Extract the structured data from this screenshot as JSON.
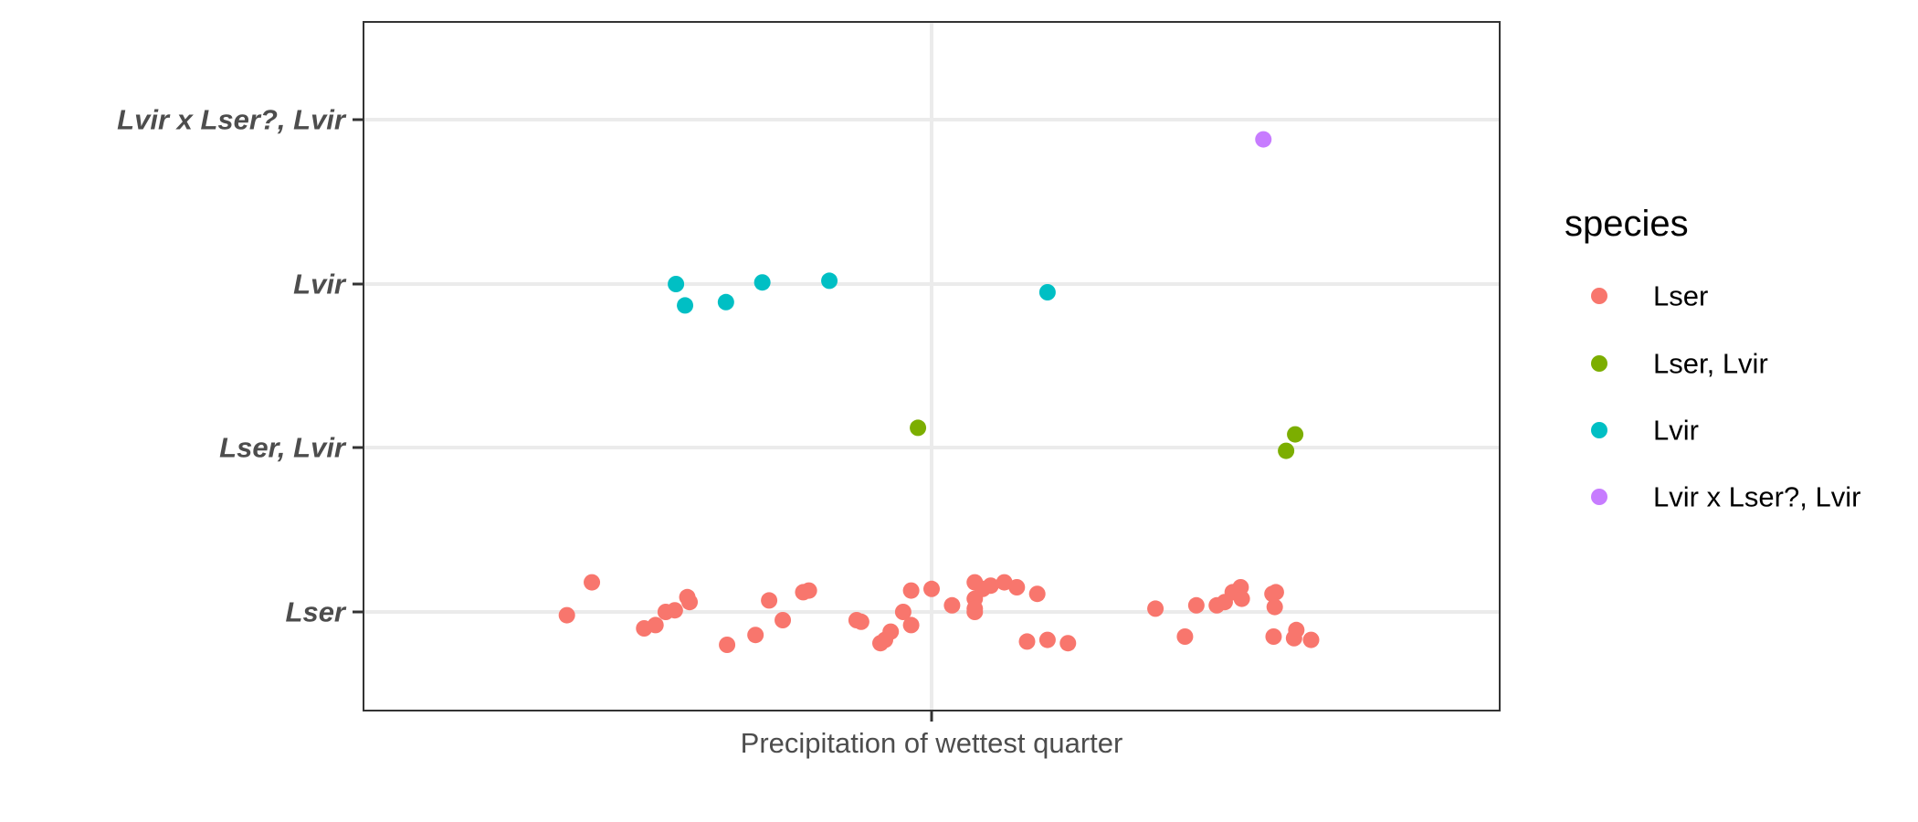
{
  "chart_data": {
    "type": "scatter",
    "title": "",
    "xlabel": "Precipitation of wettest quarter",
    "ylabel": "",
    "y_categories": [
      "Lser",
      "Lser, Lvir",
      "Lvir",
      "Lvir x Lser?, Lvir"
    ],
    "xlim": [
      0,
      1
    ],
    "x_ticks": [
      0.5
    ],
    "grid": true,
    "legend": {
      "title": "species",
      "placement": "right",
      "entries": [
        "Lser",
        "Lser, Lvir",
        "Lvir",
        "Lvir x Lser?, Lvir"
      ]
    },
    "colors": {
      "Lser": "#F8766D",
      "Lser, Lvir": "#7CAE00",
      "Lvir": "#00BFC4",
      "Lvir x Lser?, Lvir": "#C77CFF"
    },
    "series": [
      {
        "name": "Lser",
        "category": "Lser",
        "points": [
          [
            0.179,
            -0.02
          ],
          [
            0.201,
            0.18
          ],
          [
            0.247,
            -0.1
          ],
          [
            0.257,
            -0.08
          ],
          [
            0.266,
            0.0
          ],
          [
            0.274,
            0.01
          ],
          [
            0.285,
            0.09
          ],
          [
            0.287,
            0.06
          ],
          [
            0.32,
            -0.2
          ],
          [
            0.345,
            -0.14
          ],
          [
            0.357,
            0.07
          ],
          [
            0.369,
            -0.05
          ],
          [
            0.387,
            0.12
          ],
          [
            0.392,
            0.13
          ],
          [
            0.434,
            -0.05
          ],
          [
            0.438,
            -0.06
          ],
          [
            0.455,
            -0.19
          ],
          [
            0.459,
            -0.17
          ],
          [
            0.464,
            -0.12
          ],
          [
            0.475,
            0.0
          ],
          [
            0.482,
            -0.08
          ],
          [
            0.482,
            0.13
          ],
          [
            0.5,
            0.14
          ],
          [
            0.518,
            0.04
          ],
          [
            0.538,
            0.18
          ],
          [
            0.538,
            0.08
          ],
          [
            0.538,
            0.02
          ],
          [
            0.538,
            0.0
          ],
          [
            0.545,
            0.14
          ],
          [
            0.552,
            0.16
          ],
          [
            0.564,
            0.18
          ],
          [
            0.575,
            0.15
          ],
          [
            0.584,
            -0.18
          ],
          [
            0.593,
            0.11
          ],
          [
            0.602,
            -0.17
          ],
          [
            0.62,
            -0.19
          ],
          [
            0.697,
            0.02
          ],
          [
            0.723,
            -0.15
          ],
          [
            0.733,
            0.04
          ],
          [
            0.751,
            0.04
          ],
          [
            0.758,
            0.06
          ],
          [
            0.765,
            0.12
          ],
          [
            0.772,
            0.15
          ],
          [
            0.773,
            0.08
          ],
          [
            0.8,
            0.11
          ],
          [
            0.803,
            0.12
          ],
          [
            0.802,
            0.03
          ],
          [
            0.801,
            -0.15
          ],
          [
            0.819,
            -0.16
          ],
          [
            0.821,
            -0.11
          ],
          [
            0.834,
            -0.17
          ]
        ]
      },
      {
        "name": "Lser, Lvir",
        "category": "Lser, Lvir",
        "points": [
          [
            0.488,
            0.12
          ],
          [
            0.812,
            -0.02
          ],
          [
            0.82,
            0.08
          ]
        ]
      },
      {
        "name": "Lvir",
        "category": "Lvir",
        "points": [
          [
            0.275,
            0.0
          ],
          [
            0.283,
            -0.13
          ],
          [
            0.319,
            -0.11
          ],
          [
            0.351,
            0.01
          ],
          [
            0.41,
            0.02
          ],
          [
            0.602,
            -0.05
          ]
        ]
      },
      {
        "name": "Lvir x Lser?, Lvir",
        "category": "Lvir x Lser?, Lvir",
        "points": [
          [
            0.792,
            -0.12
          ]
        ]
      }
    ]
  }
}
